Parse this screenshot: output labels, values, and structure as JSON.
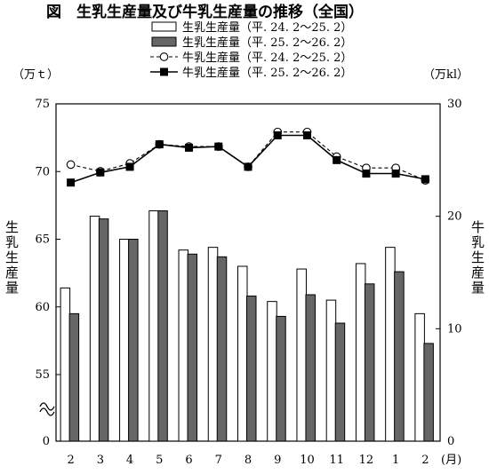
{
  "chart_data": {
    "type": "bar+line",
    "title": "図　生乳生産量及び牛乳生産量の推移（全国）",
    "left_unit": "（万ｔ）",
    "right_unit": "（万kl）",
    "left_axis_label": "生乳生産量",
    "right_axis_label": "牛乳生産量",
    "x_unit": "(月)",
    "categories": [
      "2",
      "3",
      "4",
      "5",
      "6",
      "7",
      "8",
      "9",
      "10",
      "11",
      "12",
      "1",
      "2"
    ],
    "left_ticks": [
      "75",
      "70",
      "65",
      "60",
      "55",
      "0"
    ],
    "right_ticks": [
      "30",
      "20",
      "10",
      "0"
    ],
    "left_ylim": [
      0,
      75
    ],
    "right_ylim": [
      0,
      30
    ],
    "left_axis_break": true,
    "legend_position": "top-center",
    "bar_series": [
      {
        "name": "生乳生産量（平. 24. 2～25. 2）",
        "color": "#ffffff",
        "values": [
          61.4,
          66.7,
          65.0,
          67.1,
          64.2,
          64.4,
          63.0,
          60.4,
          62.8,
          60.5,
          63.2,
          64.4,
          59.5
        ]
      },
      {
        "name": "生乳生産量（平. 25. 2～26. 2）",
        "color": "#666666",
        "values": [
          59.5,
          66.5,
          65.0,
          67.1,
          63.9,
          63.7,
          60.8,
          59.3,
          60.9,
          58.8,
          61.7,
          62.6,
          57.3
        ]
      }
    ],
    "line_series": [
      {
        "name": "牛乳生産量（平. 24. 2～25. 2）",
        "style": "dashed",
        "marker": "open-circle",
        "values": [
          24.6,
          24.0,
          24.7,
          26.4,
          26.2,
          26.2,
          24.4,
          27.5,
          27.5,
          25.3,
          24.3,
          24.3,
          23.2
        ]
      },
      {
        "name": "牛乳生産量（平. 25. 2～26. 2）",
        "style": "solid",
        "marker": "filled-square",
        "values": [
          23.0,
          23.9,
          24.4,
          26.4,
          26.1,
          26.2,
          24.4,
          27.2,
          27.2,
          25.0,
          23.8,
          23.8,
          23.3
        ]
      }
    ]
  }
}
